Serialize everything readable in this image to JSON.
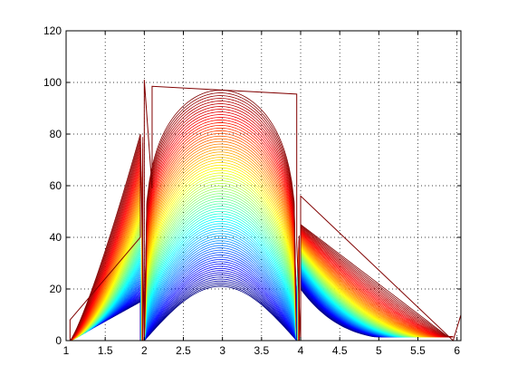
{
  "chart_data": {
    "type": "line",
    "title": "",
    "xlabel": "",
    "ylabel": "",
    "xlim": [
      1,
      6.05
    ],
    "ylim": [
      0,
      120
    ],
    "xticks": [
      1,
      1.5,
      2,
      2.5,
      3,
      3.5,
      4,
      4.5,
      5,
      5.5,
      6
    ],
    "xtick_labels": [
      "1",
      "1.5",
      "2",
      "2.5",
      "3",
      "3.5",
      "4",
      "4.5",
      "5",
      "5.5",
      "6"
    ],
    "yticks": [
      0,
      20,
      40,
      60,
      80,
      100,
      120
    ],
    "ytick_labels": [
      "0",
      "20",
      "40",
      "60",
      "80",
      "100",
      "120"
    ],
    "grid": true,
    "grid_style": "dotted",
    "legend": "none",
    "colormap": "jet",
    "colors": {
      "background": "#ffffff",
      "axes": "#000000",
      "grid": "#000000"
    },
    "series_count": 80,
    "segments": [
      {
        "x_start": 1.05,
        "x_end": 1.95,
        "base_peak": 15,
        "peak_at": 1.95,
        "top_peak": 80
      },
      {
        "x_start": 2.0,
        "x_end": 3.95,
        "base_peak": 21,
        "peak_at": 2.95,
        "top_peak": 97
      },
      {
        "x_start": 4.0,
        "x_end": 5.95,
        "base_peak": 1.5,
        "peak_at": 4.0,
        "top_peak": 45
      }
    ],
    "outline": {
      "x": [
        1.0,
        1.05,
        1.05,
        1.95,
        1.95,
        2.0,
        2.0,
        2.1,
        2.1,
        3.95,
        3.95,
        4.0,
        4.0,
        5.95,
        6.05,
        6.05
      ],
      "y": [
        0,
        0,
        8,
        40,
        80,
        0,
        101,
        59,
        98.5,
        95.5,
        38,
        0,
        56,
        0,
        10,
        10
      ]
    }
  }
}
